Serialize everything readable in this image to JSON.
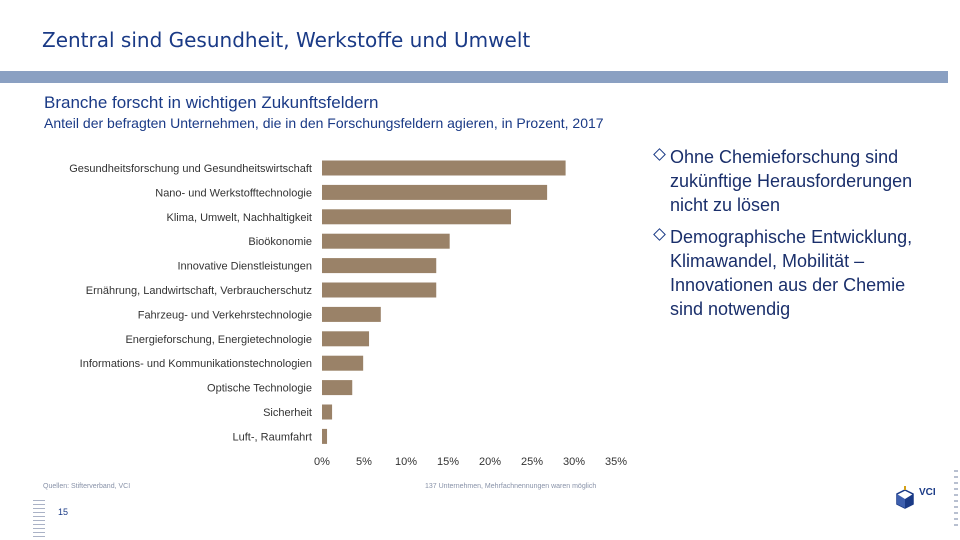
{
  "header": {
    "title": "Zentral sind Gesundheit, Werkstoffe und Umwelt",
    "subtitle": "Branche forscht in wichtigen Zukunftsfeldern",
    "description": "Anteil der befragten Unternehmen, die in den Forschungsfeldern agieren, in Prozent, 2017"
  },
  "notes": [
    "Ohne Chemieforschung sind zukünftige Herausforderungen nicht zu lösen",
    "Demographische Entwicklung, Klimawandel, Mobilität – Innovationen aus der Chemie sind notwendig"
  ],
  "footer": {
    "source": "Quellen: Stifterverband, VCI",
    "footnote": "137 Unternehmen, Mehrfachnennungen waren möglich",
    "page_number": "15",
    "logo_text": "VCI"
  },
  "colors": {
    "bar": "#9a8268",
    "accent": "#1a3a86",
    "rule": "#8aa0c2"
  },
  "chart_data": {
    "type": "bar",
    "orientation": "horizontal",
    "categories": [
      "Gesundheitsforschung und Gesundheitswirtschaft",
      "Nano- und Werkstofftechnologie",
      "Klima, Umwelt, Nachhaltigkeit",
      "Bioökonomie",
      "Innovative Dienstleistungen",
      "Ernährung, Landwirtschaft, Verbraucherschutz",
      "Fahrzeug- und Verkehrstechnologie",
      "Energieforschung, Energietechnologie",
      "Informations- und Kommunikationstechnologien",
      "Optische Technologie",
      "Sicherheit",
      "Luft-, Raumfahrt"
    ],
    "values": [
      29,
      26.8,
      22.5,
      15.2,
      13.6,
      13.6,
      7.0,
      5.6,
      4.9,
      3.6,
      1.2,
      0.6
    ],
    "unit": "%",
    "xlim": [
      0,
      35
    ],
    "xticks": [
      "0%",
      "5%",
      "10%",
      "15%",
      "20%",
      "25%",
      "30%",
      "35%"
    ],
    "grid": false
  }
}
